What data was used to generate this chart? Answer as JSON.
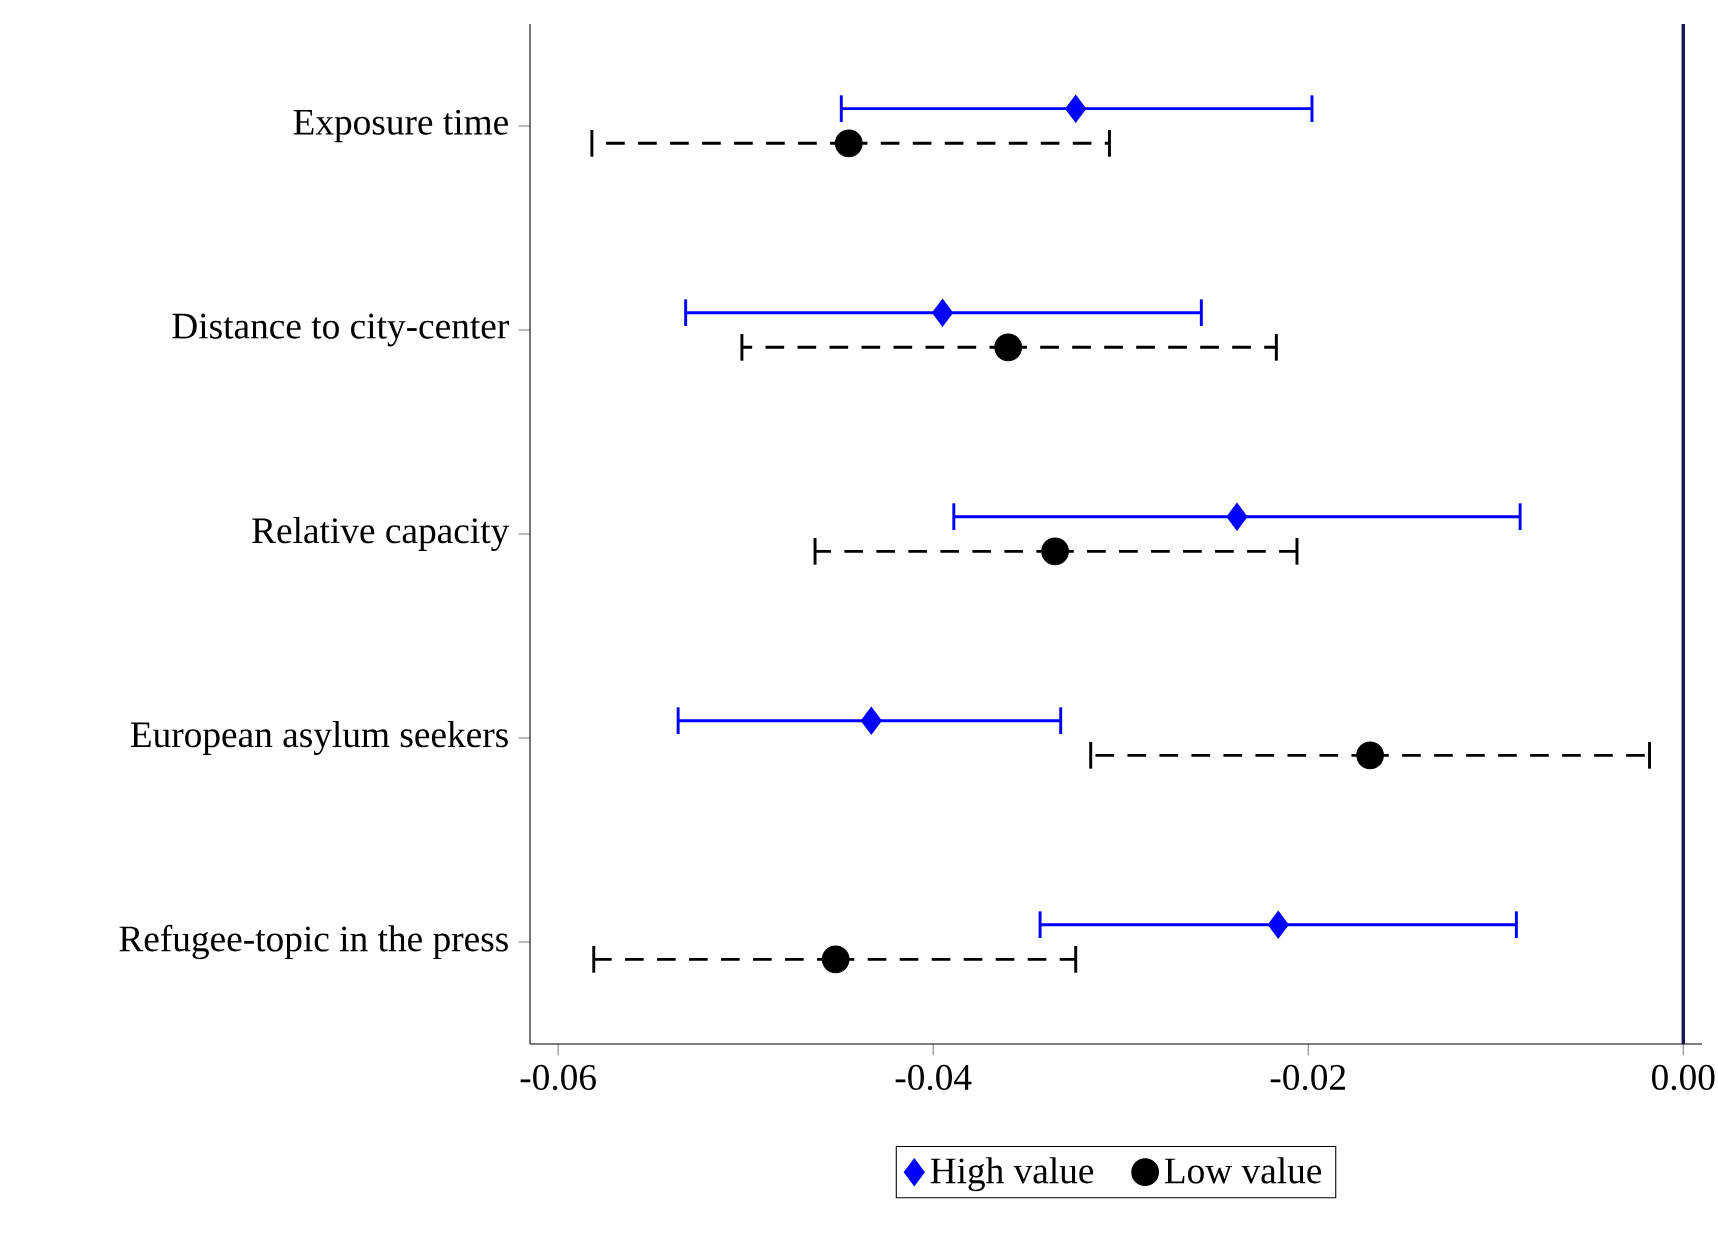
{
  "chart_data": {
    "type": "scatter",
    "orientation": "horizontal",
    "categories": [
      "Exposure time",
      "Distance to city-center",
      "Relative capacity",
      "European asylum seekers",
      "Refugee-topic in the press"
    ],
    "series": [
      {
        "name": "High value",
        "color": "#0000ff",
        "marker": "diamond",
        "line_style": "solid",
        "values": [
          -0.0324,
          -0.0395,
          -0.0238,
          -0.0433,
          -0.0216
        ],
        "errors": [
          [
            -0.0449,
            -0.0198
          ],
          [
            -0.0532,
            -0.0257
          ],
          [
            -0.0389,
            -0.0087
          ],
          [
            -0.0536,
            -0.0332
          ],
          [
            -0.0343,
            -0.0089
          ]
        ]
      },
      {
        "name": "Low value",
        "color": "#000000",
        "marker": "circle",
        "line_style": "dashed",
        "values": [
          -0.0445,
          -0.036,
          -0.0335,
          -0.0167,
          -0.0452
        ],
        "errors": [
          [
            -0.0582,
            -0.0306
          ],
          [
            -0.0502,
            -0.0217
          ],
          [
            -0.0463,
            -0.0206
          ],
          [
            -0.0316,
            -0.0018
          ],
          [
            -0.0581,
            -0.0324
          ]
        ]
      }
    ],
    "xlim": [
      -0.0615,
      0.001
    ],
    "xticks": [
      {
        "value": -0.06,
        "label": "-0.06"
      },
      {
        "value": -0.04,
        "label": "-0.04"
      },
      {
        "value": -0.02,
        "label": "-0.02"
      },
      {
        "value": 0,
        "label": "0.00"
      }
    ],
    "ref_lines": [
      {
        "axis": "x",
        "value": 0,
        "color": "#1a1a4e"
      }
    ],
    "legend": "bottom"
  }
}
